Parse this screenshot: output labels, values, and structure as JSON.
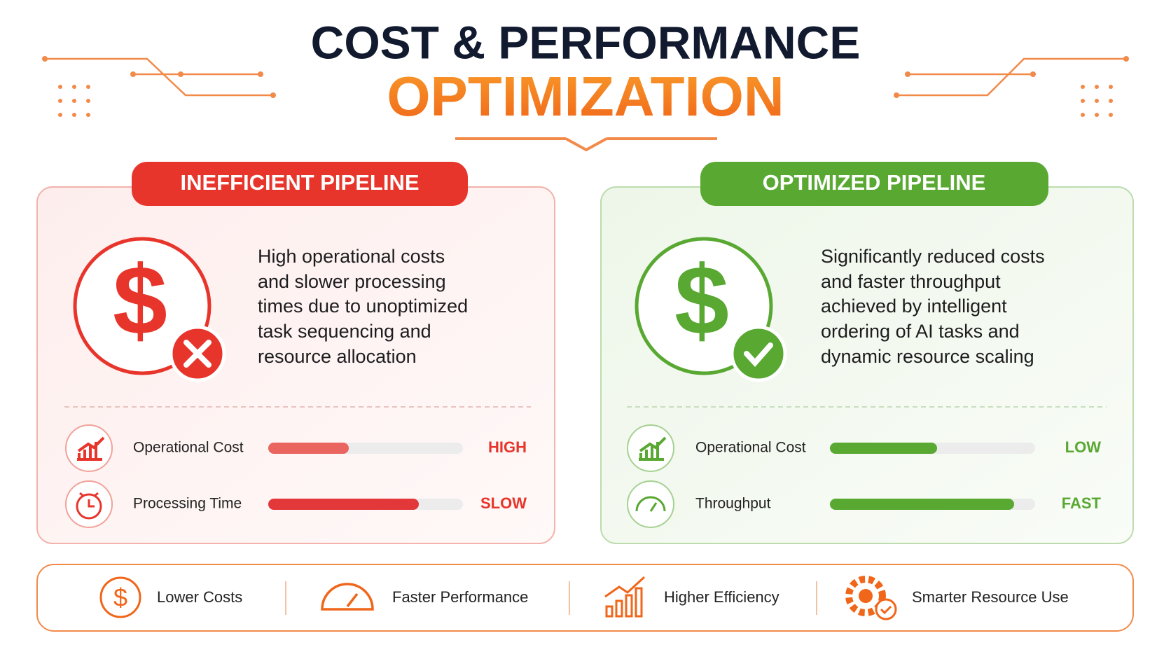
{
  "header": {
    "title_line1": "COST & PERFORMANCE",
    "title_line2": "OPTIMIZATION"
  },
  "panels": [
    {
      "badge": "INEFFICIENT PIPELINE",
      "description": [
        "High operational costs",
        "and slower processing",
        "times due to unoptimized",
        "task sequencing and",
        "resource allocation"
      ],
      "metrics": [
        {
          "label": "Operational Cost",
          "status": "HIGH"
        },
        {
          "label": "Processing Time",
          "status": "SLOW"
        }
      ]
    },
    {
      "badge": "OPTIMIZED PIPELINE",
      "description": [
        "Significantly reduced costs",
        "and faster throughput",
        "achieved by intelligent",
        "ordering of AI tasks and",
        "dynamic resource scaling"
      ],
      "metrics": [
        {
          "label": "Operational Cost",
          "status": "LOW"
        },
        {
          "label": "Throughput",
          "status": "FAST"
        }
      ]
    }
  ],
  "benefits": [
    "Lower Costs",
    "Faster Performance",
    "Higher Efficiency",
    "Smarter Resource Use"
  ]
}
